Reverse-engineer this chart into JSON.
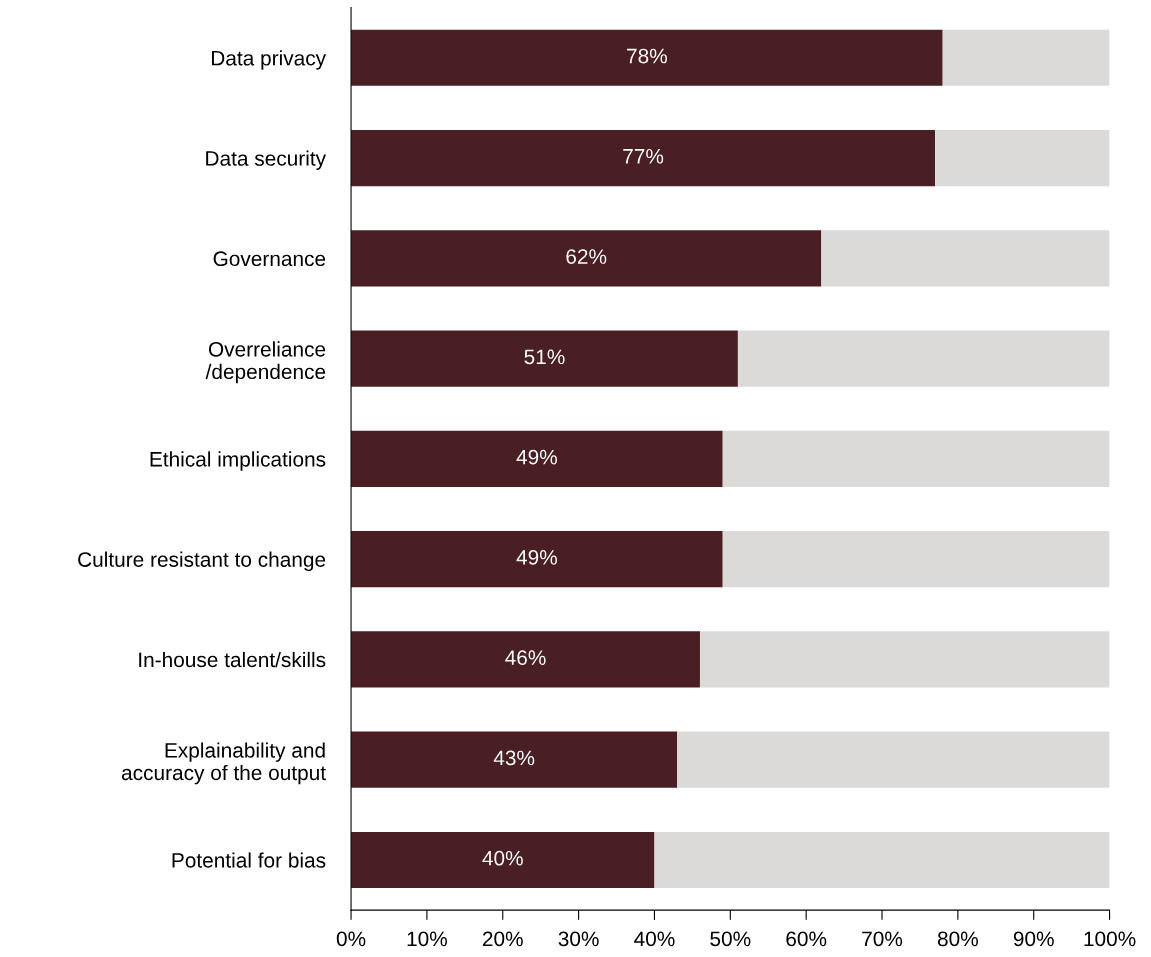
{
  "chart_data": {
    "type": "bar",
    "orientation": "horizontal",
    "stacked": true,
    "categories": [
      "Data privacy",
      "Data security",
      "Governance",
      "Overreliance\n/dependence",
      "Ethical implications",
      "Culture resistant to change",
      "In-house talent/skills",
      "Explainability and\naccuracy of the output",
      "Potential for bias"
    ],
    "series": [
      {
        "color": "#4a1f24",
        "values": [
          78,
          77,
          62,
          51,
          49,
          49,
          46,
          43,
          40
        ],
        "value_labels": [
          "78%",
          "77%",
          "62%",
          "51%",
          "49%",
          "49%",
          "46%",
          "43%",
          "40%"
        ]
      },
      {
        "color": "#dcdad8",
        "values": [
          22,
          23,
          38,
          49,
          51,
          51,
          54,
          57,
          60
        ]
      }
    ],
    "xlim": [
      0,
      100
    ],
    "xticks": [
      {
        "value": 0,
        "label": "0%"
      },
      {
        "value": 10,
        "label": "10%"
      },
      {
        "value": 20,
        "label": "20%"
      },
      {
        "value": 30,
        "label": "30%"
      },
      {
        "value": 40,
        "label": "40%"
      },
      {
        "value": 50,
        "label": "50%"
      },
      {
        "value": 60,
        "label": "60%"
      },
      {
        "value": 70,
        "label": "70%"
      },
      {
        "value": 80,
        "label": "80%"
      },
      {
        "value": 90,
        "label": "90%"
      },
      {
        "value": 100,
        "label": "100%"
      }
    ],
    "grid": false,
    "legend": false
  }
}
